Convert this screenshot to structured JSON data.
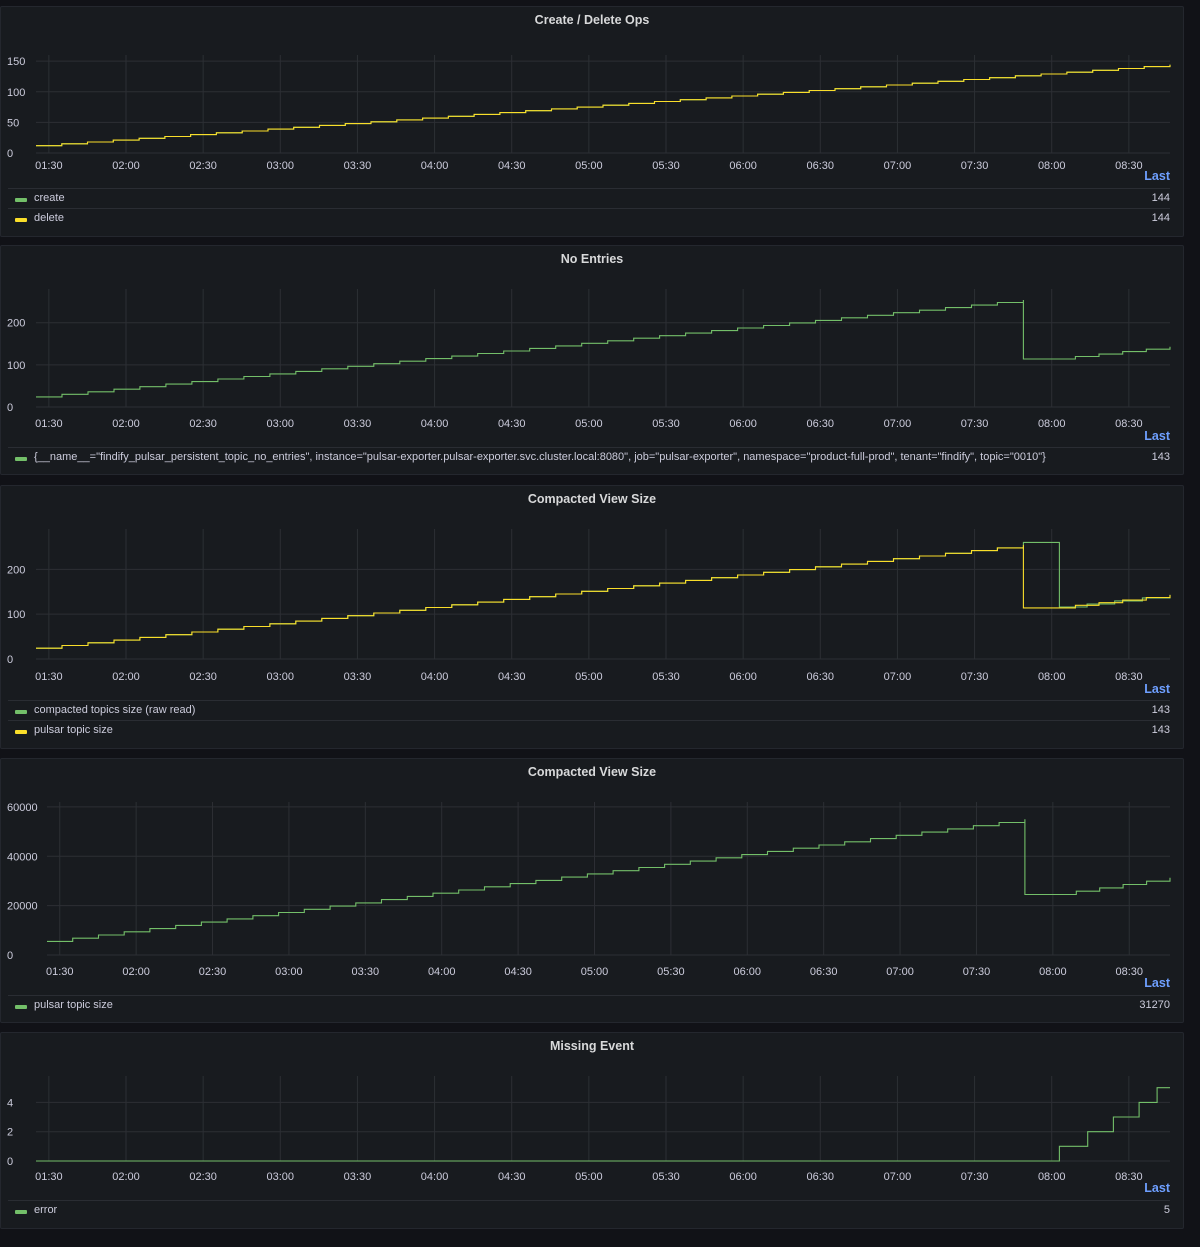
{
  "colors": {
    "green": "#73bf69",
    "yellow": "#fade2a",
    "grid": "#2c2f34",
    "text": "#ccccdc",
    "legend_header": "#6e9fff"
  },
  "panels": [
    {
      "title": "Create / Delete Ops",
      "legend_header": "Last",
      "legend": [
        {
          "name": "create",
          "value": "144",
          "color": "#73bf69"
        },
        {
          "name": "delete",
          "value": "144",
          "color": "#fade2a"
        }
      ]
    },
    {
      "title": "No Entries",
      "legend_header": "Last",
      "legend": [
        {
          "name": "{__name__=\"findify_pulsar_persistent_topic_no_entries\", instance=\"pulsar-exporter.pulsar-exporter.svc.cluster.local:8080\", job=\"pulsar-exporter\", namespace=\"product-full-prod\", tenant=\"findify\", topic=\"0010\"}",
          "value": "143",
          "color": "#73bf69"
        }
      ]
    },
    {
      "title": "Compacted View Size",
      "legend_header": "Last",
      "legend": [
        {
          "name": "compacted topics size (raw read)",
          "value": "143",
          "color": "#73bf69"
        },
        {
          "name": "pulsar topic size",
          "value": "143",
          "color": "#fade2a"
        }
      ]
    },
    {
      "title": "Compacted View Size",
      "legend_header": "Last",
      "legend": [
        {
          "name": "pulsar topic size",
          "value": "31270",
          "color": "#73bf69"
        }
      ]
    },
    {
      "title": "Missing Event",
      "legend_header": "Last",
      "legend": [
        {
          "name": "error",
          "value": "5",
          "color": "#73bf69"
        }
      ]
    }
  ],
  "chart_data": [
    {
      "type": "line",
      "title": "Create / Delete Ops",
      "x_ticks": [
        "01:30",
        "02:00",
        "02:30",
        "03:00",
        "03:30",
        "04:00",
        "04:30",
        "05:00",
        "05:30",
        "06:00",
        "06:30",
        "07:00",
        "07:30",
        "08:00",
        "08:30"
      ],
      "y_ticks": [
        0,
        50,
        100,
        150
      ],
      "ylim": [
        0,
        160
      ],
      "xlim": [
        "01:25",
        "08:46"
      ],
      "grid": true,
      "series": [
        {
          "name": "create",
          "color": "#73bf69",
          "step": true,
          "points": [
            [
              "01:25",
              12
            ],
            [
              "08:46",
              144
            ]
          ]
        },
        {
          "name": "delete",
          "color": "#fade2a",
          "step": true,
          "points": [
            [
              "01:25",
              12
            ],
            [
              "08:46",
              144
            ]
          ]
        }
      ]
    },
    {
      "type": "line",
      "title": "No Entries",
      "x_ticks": [
        "01:30",
        "02:00",
        "02:30",
        "03:00",
        "03:30",
        "04:00",
        "04:30",
        "05:00",
        "05:30",
        "06:00",
        "06:30",
        "07:00",
        "07:30",
        "08:00",
        "08:30"
      ],
      "y_ticks": [
        0,
        100,
        200
      ],
      "ylim": [
        0,
        280
      ],
      "xlim": [
        "01:25",
        "08:46"
      ],
      "grid": true,
      "series": [
        {
          "name": "{__name__=\"findify_pulsar_persistent_topic_no_entries\", instance=\"pulsar-exporter.pulsar-exporter.svc.cluster.local:8080\", job=\"pulsar-exporter\", namespace=\"product-full-prod\", tenant=\"findify\", topic=\"0010\"}",
          "color": "#73bf69",
          "step": true,
          "points": [
            [
              "01:25",
              24
            ],
            [
              "07:49",
              254
            ],
            [
              "07:49",
              114
            ],
            [
              "08:00",
              114
            ],
            [
              "08:46",
              143
            ]
          ]
        }
      ]
    },
    {
      "type": "line",
      "title": "Compacted View Size",
      "x_ticks": [
        "01:30",
        "02:00",
        "02:30",
        "03:00",
        "03:30",
        "04:00",
        "04:30",
        "05:00",
        "05:30",
        "06:00",
        "06:30",
        "07:00",
        "07:30",
        "08:00",
        "08:30"
      ],
      "y_ticks": [
        0,
        100,
        200
      ],
      "ylim": [
        0,
        290
      ],
      "xlim": [
        "01:25",
        "08:46"
      ],
      "grid": true,
      "series": [
        {
          "name": "compacted topics size (raw read)",
          "color": "#73bf69",
          "step": true,
          "points": [
            [
              "01:25",
              24
            ],
            [
              "07:49",
              254
            ],
            [
              "07:49",
              260
            ],
            [
              "08:03",
              260
            ],
            [
              "08:03",
              116
            ],
            [
              "08:46",
              143
            ]
          ]
        },
        {
          "name": "pulsar topic size",
          "color": "#fade2a",
          "step": true,
          "points": [
            [
              "01:25",
              24
            ],
            [
              "07:49",
              254
            ],
            [
              "07:49",
              114
            ],
            [
              "08:00",
              114
            ],
            [
              "08:46",
              143
            ]
          ]
        }
      ]
    },
    {
      "type": "line",
      "title": "Compacted View Size",
      "x_ticks": [
        "01:30",
        "02:00",
        "02:30",
        "03:00",
        "03:30",
        "04:00",
        "04:30",
        "05:00",
        "05:30",
        "06:00",
        "06:30",
        "07:00",
        "07:30",
        "08:00",
        "08:30"
      ],
      "y_ticks": [
        0,
        20000,
        40000,
        60000
      ],
      "ylim": [
        0,
        62000
      ],
      "xlim": [
        "01:25",
        "08:46"
      ],
      "grid": true,
      "series": [
        {
          "name": "pulsar topic size",
          "color": "#73bf69",
          "step": true,
          "points": [
            [
              "01:25",
              5500
            ],
            [
              "07:49",
              55000
            ],
            [
              "07:49",
              24500
            ],
            [
              "08:00",
              24500
            ],
            [
              "08:46",
              31270
            ]
          ]
        }
      ]
    },
    {
      "type": "line",
      "title": "Missing Event",
      "x_ticks": [
        "01:30",
        "02:00",
        "02:30",
        "03:00",
        "03:30",
        "04:00",
        "04:30",
        "05:00",
        "05:30",
        "06:00",
        "06:30",
        "07:00",
        "07:30",
        "08:00",
        "08:30"
      ],
      "y_ticks": [
        0,
        2,
        4
      ],
      "ylim": [
        0,
        5.8
      ],
      "xlim": [
        "01:25",
        "08:46"
      ],
      "grid": true,
      "series": [
        {
          "name": "error",
          "color": "#73bf69",
          "step": true,
          "points": [
            [
              "01:25",
              0
            ],
            [
              "08:03",
              0
            ],
            [
              "08:03",
              1
            ],
            [
              "08:14",
              1
            ],
            [
              "08:14",
              2
            ],
            [
              "08:24",
              2
            ],
            [
              "08:24",
              3
            ],
            [
              "08:34",
              3
            ],
            [
              "08:34",
              4
            ],
            [
              "08:41",
              4
            ],
            [
              "08:41",
              5
            ],
            [
              "08:46",
              5
            ]
          ]
        }
      ]
    }
  ]
}
